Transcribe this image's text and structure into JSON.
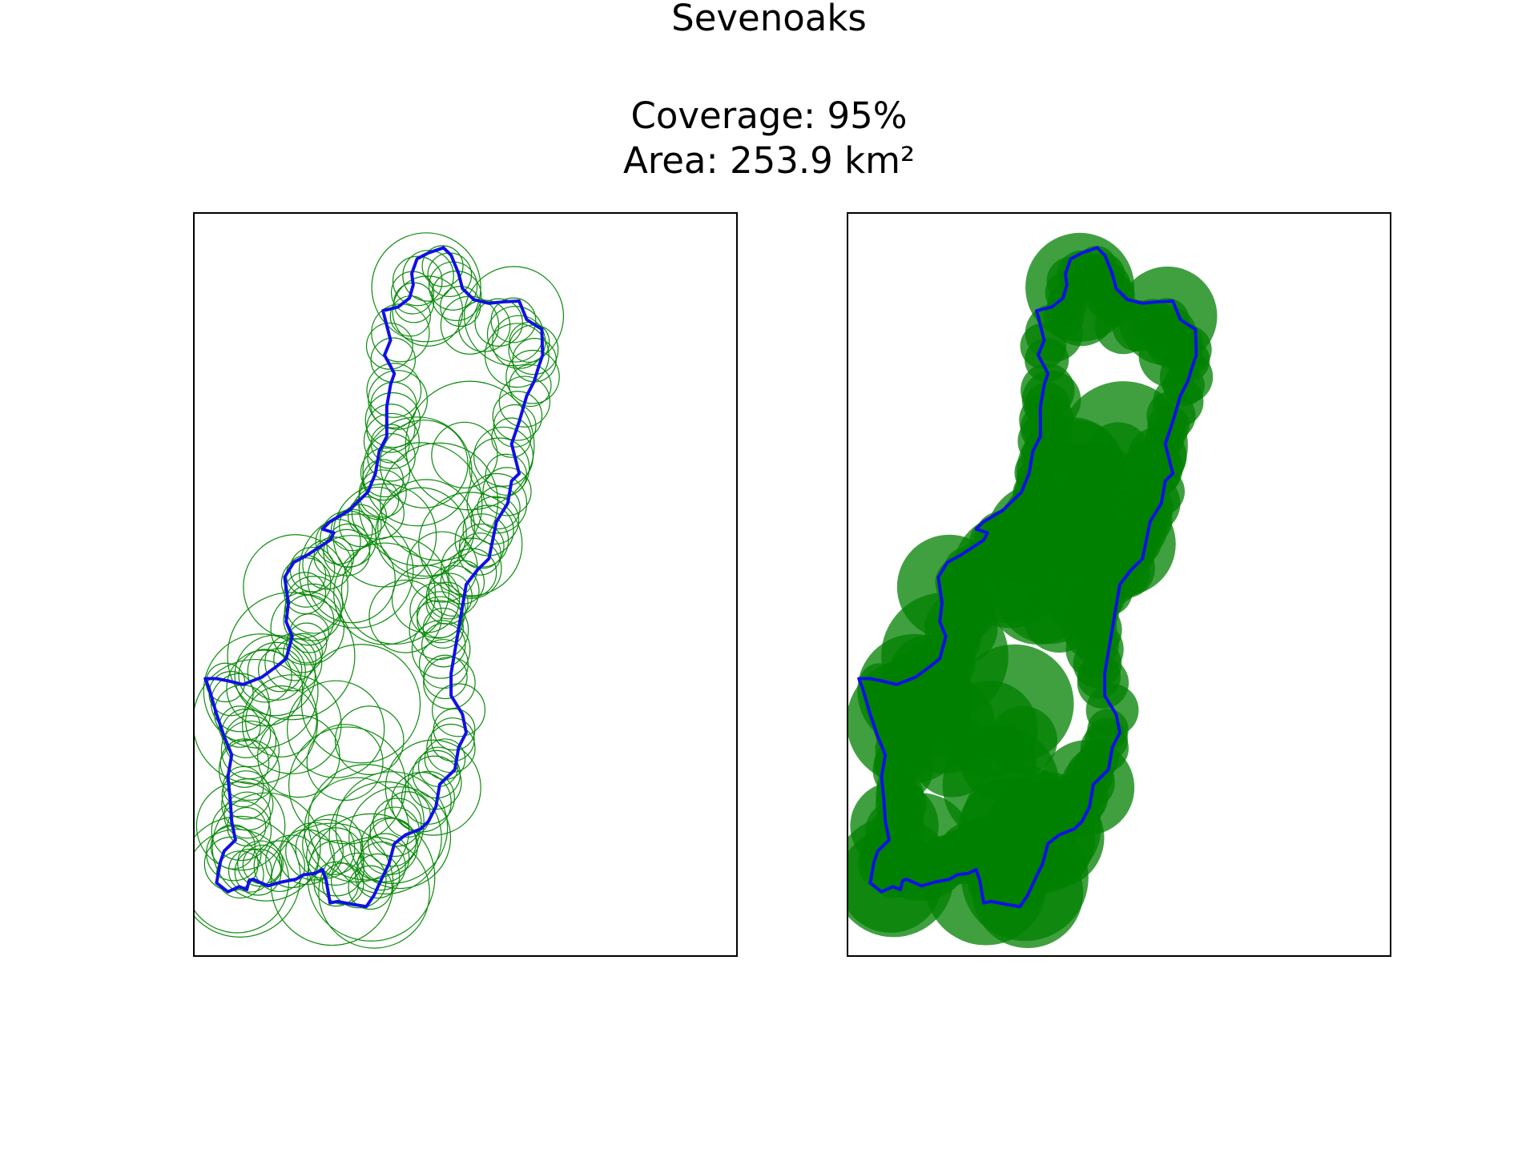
{
  "figure": {
    "title": "Sevenoaks",
    "coverage_text": "Coverage: 95%",
    "area_text": "Area: 253.9 km²"
  },
  "colors": {
    "boundary": "#1010e6",
    "circle_stroke": "#0a8a0a",
    "circle_fill": "#008000"
  },
  "panels": [
    {
      "name": "outline-circles-panel",
      "style": "outlined"
    },
    {
      "name": "filled-circles-panel",
      "style": "filled"
    }
  ]
}
